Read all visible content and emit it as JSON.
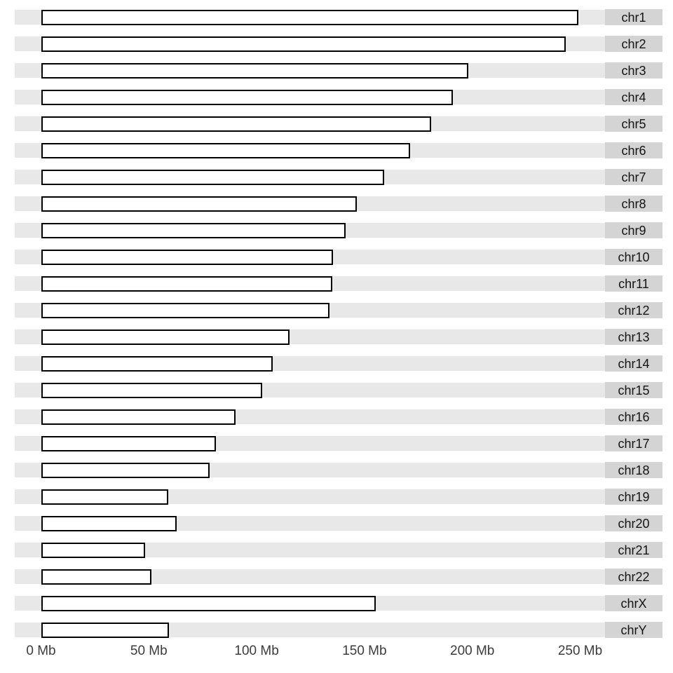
{
  "chart_data": {
    "type": "bar",
    "orientation": "horizontal",
    "title": "",
    "xlabel": "",
    "ylabel": "",
    "unit": "Mb",
    "categories": [
      "chr1",
      "chr2",
      "chr3",
      "chr4",
      "chr5",
      "chr6",
      "chr7",
      "chr8",
      "chr9",
      "chr10",
      "chr11",
      "chr12",
      "chr13",
      "chr14",
      "chr15",
      "chr16",
      "chr17",
      "chr18",
      "chr19",
      "chr20",
      "chr21",
      "chr22",
      "chrX",
      "chrY"
    ],
    "values": [
      249.25,
      243.2,
      198.02,
      191.15,
      180.92,
      171.12,
      159.14,
      146.36,
      141.21,
      135.53,
      135.01,
      133.85,
      115.17,
      107.35,
      102.53,
      90.35,
      81.2,
      78.08,
      59.13,
      63.03,
      48.13,
      51.3,
      155.27,
      59.37
    ],
    "xlim": [
      0,
      250
    ],
    "x_tick_values": [
      0,
      50,
      100,
      150,
      200,
      250
    ],
    "x_tick_labels": [
      "0 Mb",
      "50 Mb",
      "100 Mb",
      "150 Mb",
      "200 Mb",
      "250 Mb"
    ],
    "grid": false,
    "legend": false,
    "colors": {
      "bar_fill": "#ffffff",
      "bar_border": "#000000",
      "row_background": "#e8e8e8",
      "label_box_background": "#d4d4d4",
      "label_text": "#141414",
      "axis_text": "#3c3c3c"
    }
  }
}
